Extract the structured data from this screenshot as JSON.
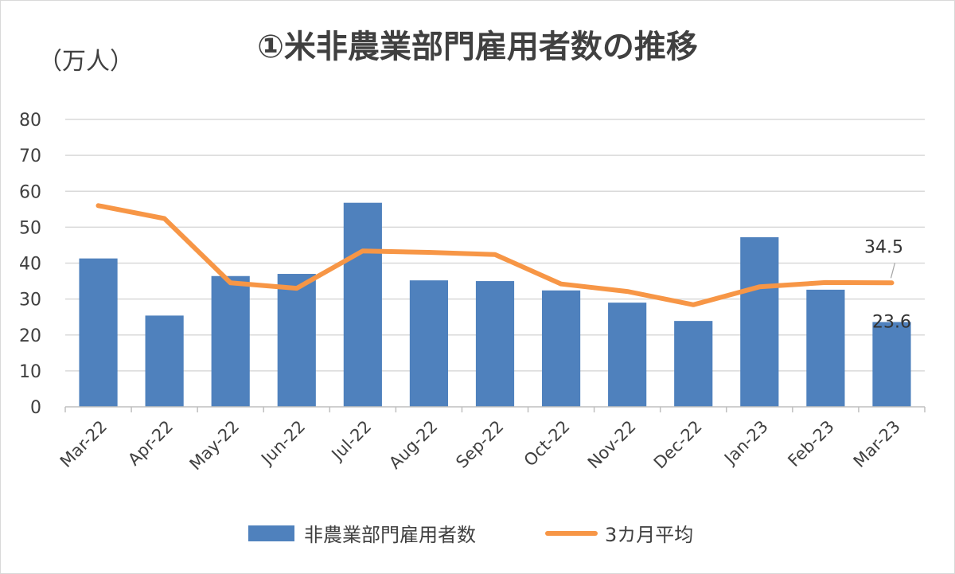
{
  "chart_data": {
    "type": "bar",
    "title": "①米非農業部門雇用者数の推移",
    "ylabel": "（万人）",
    "ylim": [
      0,
      80
    ],
    "yticks": [
      0,
      10,
      20,
      30,
      40,
      50,
      60,
      70,
      80
    ],
    "grid": true,
    "legend_position": "bottom",
    "categories": [
      "Mar-22",
      "Apr-22",
      "May-22",
      "Jun-22",
      "Jul-22",
      "Aug-22",
      "Sep-22",
      "Oct-22",
      "Nov-22",
      "Dec-22",
      "Jan-23",
      "Feb-23",
      "Mar-23"
    ],
    "series": [
      {
        "name": "非農業部門雇用者数",
        "type": "bar",
        "color": "#4f81bd",
        "values": [
          41.3,
          25.4,
          36.4,
          37.0,
          56.8,
          35.2,
          35.0,
          32.4,
          29.0,
          23.9,
          47.2,
          32.6,
          23.6
        ]
      },
      {
        "name": "3カ月平均",
        "type": "line",
        "color": "#f79646",
        "values": [
          56.0,
          52.4,
          34.5,
          33.0,
          43.4,
          43.0,
          42.4,
          34.2,
          32.1,
          28.4,
          33.4,
          34.6,
          34.5
        ]
      }
    ],
    "data_labels": [
      {
        "series": 0,
        "index": 12,
        "text": "23.6"
      },
      {
        "series": 1,
        "index": 12,
        "text": "34.5"
      }
    ]
  }
}
